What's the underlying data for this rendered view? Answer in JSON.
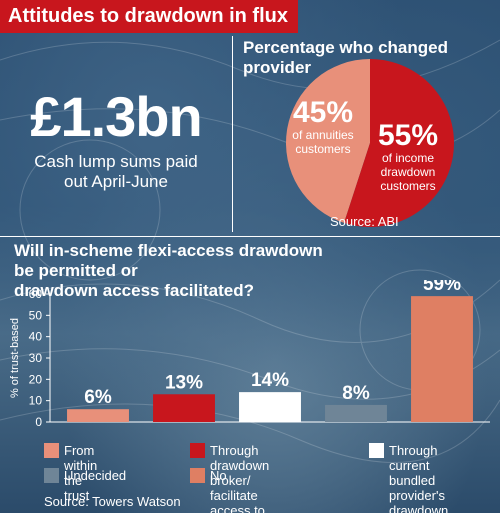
{
  "header": {
    "title": "Attitudes to drawdown in flux"
  },
  "headline_stat": {
    "value": "£1.3bn",
    "caption_line1": "Cash  lump sums paid",
    "caption_line2": "out April-June"
  },
  "pie": {
    "title": "Percentage who changed provider",
    "source": "Source: ABI",
    "slices": [
      {
        "percent_label": "45%",
        "label_line1": "of annuities",
        "label_line2": "customers",
        "label_line3": "",
        "value": 45,
        "color": "#e8907a"
      },
      {
        "percent_label": "55%",
        "label_line1": "of income",
        "label_line2": "drawdown",
        "label_line3": "customers",
        "value": 55,
        "color": "#c8161d"
      }
    ]
  },
  "bar_section": {
    "title_line1": "Will in-scheme flexi-access drawdown be permitted or",
    "title_line2": "drawdown access facilitated?",
    "source": "Source: Towers Watson"
  },
  "chart_data": {
    "type": "bar",
    "ylabel": "% of trust-based",
    "ylim": [
      0,
      60
    ],
    "yticks": [
      0,
      10,
      20,
      30,
      40,
      50,
      60
    ],
    "categories": [
      "From within the trust",
      "Through drawdown broker/ facilitate access to provider",
      "Through current bundled provider's drawdown product",
      "Undecided",
      "No"
    ],
    "values": [
      6,
      13,
      14,
      8,
      59
    ],
    "value_labels": [
      "6%",
      "13%",
      "14%",
      "8%",
      "59%"
    ],
    "colors": [
      "#e8907a",
      "#c8161d",
      "#ffffff",
      "#6f8597",
      "#df7f63"
    ],
    "legend": [
      {
        "text": [
          "From within the trust"
        ],
        "color": "#e8907a"
      },
      {
        "text": [
          "Through drawdown broker/",
          "facilitate access to provider"
        ],
        "color": "#c8161d"
      },
      {
        "text": [
          "Through current",
          "bundled provider's",
          "drawdown product"
        ],
        "color": "#ffffff"
      },
      {
        "text": [
          "Undecided"
        ],
        "color": "#6f8597"
      },
      {
        "text": [
          "No"
        ],
        "color": "#df7f63"
      }
    ],
    "grid": false
  }
}
